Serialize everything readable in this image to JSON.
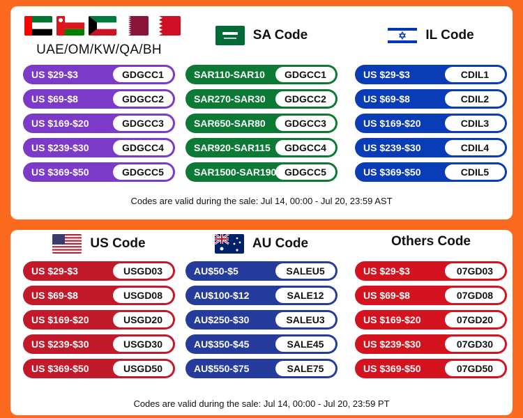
{
  "top": {
    "regions": [
      {
        "title": "UAE/OM/KW/QA/BH",
        "flags": [
          "uae-flag-icon",
          "oman-flag-icon",
          "kuwait-flag-icon",
          "qatar-flag-icon",
          "bahrain-flag-icon"
        ],
        "color": "#7b3ac8",
        "codes": [
          {
            "amount": "US $29-$3",
            "code": "GDGCC1"
          },
          {
            "amount": "US $69-$8",
            "code": "GDGCC2"
          },
          {
            "amount": "US $169-$20",
            "code": "GDGCC3"
          },
          {
            "amount": "US $239-$30",
            "code": "GDGCC4"
          },
          {
            "amount": "US $369-$50",
            "code": "GDGCC5"
          }
        ]
      },
      {
        "title": "SA Code",
        "flags": [
          "saudi-flag-icon"
        ],
        "color": "#0c7a35",
        "codes": [
          {
            "amount": "SAR110-SAR10",
            "code": "GDGCC1"
          },
          {
            "amount": "SAR270-SAR30",
            "code": "GDGCC2"
          },
          {
            "amount": "SAR650-SAR80",
            "code": "GDGCC3"
          },
          {
            "amount": "SAR920-SAR115",
            "code": "GDGCC4"
          },
          {
            "amount": "SAR1500-SAR190",
            "code": "GDGCC5"
          }
        ]
      },
      {
        "title": "IL Code",
        "flags": [
          "israel-flag-icon"
        ],
        "color": "#0b3cb8",
        "codes": [
          {
            "amount": "US $29-$3",
            "code": "CDIL1"
          },
          {
            "amount": "US $69-$8",
            "code": "CDIL2"
          },
          {
            "amount": "US $169-$20",
            "code": "CDIL3"
          },
          {
            "amount": "US $239-$30",
            "code": "CDIL4"
          },
          {
            "amount": "US $369-$50",
            "code": "CDIL5"
          }
        ]
      }
    ],
    "note": "Codes are valid during the sale: Jul 14, 00:00 - Jul 20, 23:59 AST"
  },
  "bottom": {
    "regions": [
      {
        "title": "US Code",
        "flags": [
          "us-flag-icon"
        ],
        "color": "#c21a2b",
        "codes": [
          {
            "amount": "US $29-$3",
            "code": "USGD03"
          },
          {
            "amount": "US $69-$8",
            "code": "USGD08"
          },
          {
            "amount": "US $169-$20",
            "code": "USGD20"
          },
          {
            "amount": "US $239-$30",
            "code": "USGD30"
          },
          {
            "amount": "US $369-$50",
            "code": "USGD50"
          }
        ]
      },
      {
        "title": "AU Code",
        "flags": [
          "australia-flag-icon"
        ],
        "color": "#263c9c",
        "codes": [
          {
            "amount": "AU$50-$5",
            "code": "SALEU5"
          },
          {
            "amount": "AU$100-$12",
            "code": "SALE12"
          },
          {
            "amount": "AU$250-$30",
            "code": "SALEU3"
          },
          {
            "amount": "AU$350-$45",
            "code": "SALE45"
          },
          {
            "amount": "AU$550-$75",
            "code": "SALE75"
          }
        ]
      },
      {
        "title": "Others Code",
        "flags": [],
        "color": "#d4131f",
        "codes": [
          {
            "amount": "US $29-$3",
            "code": "07GD03"
          },
          {
            "amount": "US $69-$8",
            "code": "07GD08"
          },
          {
            "amount": "US $169-$20",
            "code": "07GD20"
          },
          {
            "amount": "US $239-$30",
            "code": "07GD30"
          },
          {
            "amount": "US $369-$50",
            "code": "07GD50"
          }
        ]
      }
    ],
    "note": "Codes are valid during the sale: Jul 14, 00:00 - Jul 20, 23:59 PT"
  }
}
